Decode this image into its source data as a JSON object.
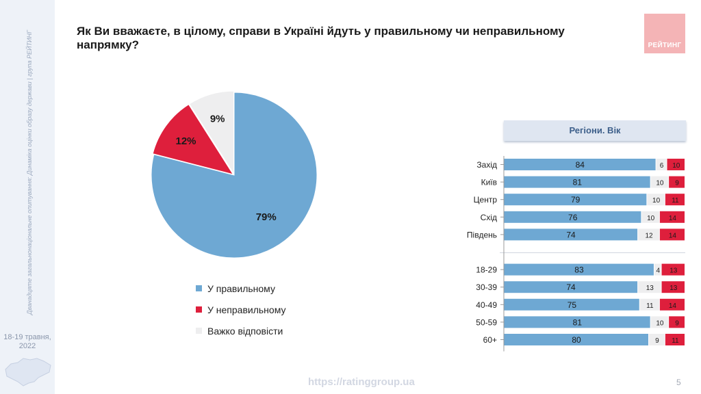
{
  "slide": {
    "title": "Як Ви вважаєте, в цілому, справи в Україні йдуть у правильному чи неправильному напрямку?",
    "sidebar_text": "Дванадцяте загальнонаціональне опитування: Динаміка оцінки образу держави | група РЕЙТИНГ",
    "date": "18-19 травня, 2022",
    "logo_text": "РЕЙТИНГ",
    "url": "https://ratinggroup.ua",
    "page_number": "5",
    "panel_title": "Регіони. Вік"
  },
  "colors": {
    "blue": "#6ea8d3",
    "red": "#de1f3c",
    "gray": "#eeeeef"
  },
  "chart_data": [
    {
      "type": "pie",
      "series": [
        {
          "name": "У правильному",
          "value": 79,
          "label": "79%",
          "color": "#6ea8d3"
        },
        {
          "name": "У неправильному",
          "value": 12,
          "label": "12%",
          "color": "#de1f3c"
        },
        {
          "name": "Важко відповісти",
          "value": 9,
          "label": "9%",
          "color": "#eeeeef"
        }
      ]
    },
    {
      "type": "bar",
      "orientation": "horizontal",
      "stacked": true,
      "categories": [
        "Захід",
        "Київ",
        "Центр",
        "Схід",
        "Південь",
        "",
        "18-29",
        "30-39",
        "40-49",
        "50-59",
        "60+"
      ],
      "series": [
        {
          "name": "У правильному",
          "color": "#6ea8d3",
          "values": [
            84,
            81,
            79,
            76,
            74,
            null,
            83,
            74,
            75,
            81,
            80
          ]
        },
        {
          "name": "Важко відповісти",
          "color": "#eeeeef",
          "values": [
            6,
            10,
            10,
            10,
            12,
            null,
            4,
            13,
            11,
            10,
            9
          ]
        },
        {
          "name": "У неправильному",
          "color": "#de1f3c",
          "values": [
            10,
            9,
            11,
            14,
            14,
            null,
            13,
            13,
            14,
            9,
            11
          ]
        }
      ]
    }
  ]
}
